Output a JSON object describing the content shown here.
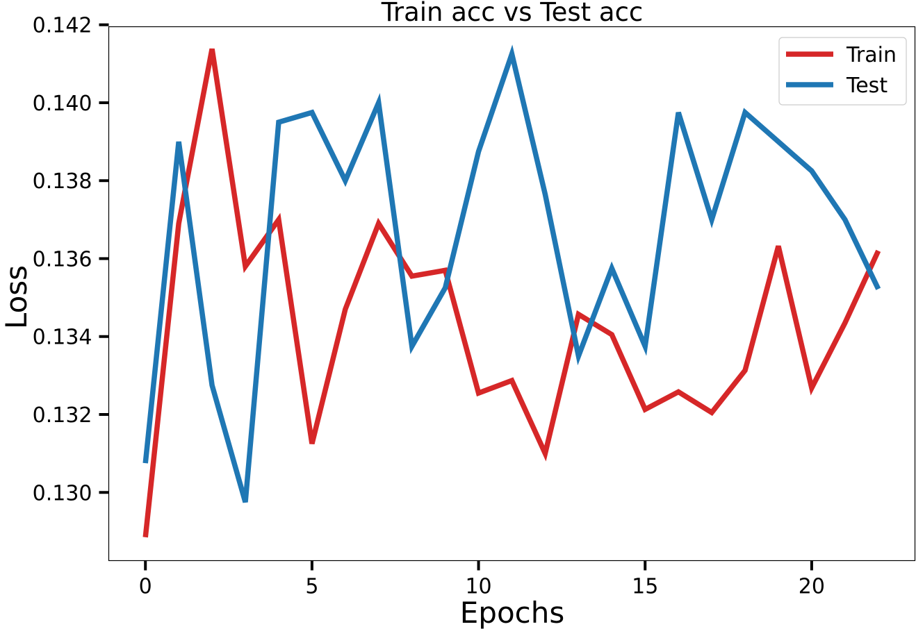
{
  "chart_data": {
    "type": "line",
    "title": "Train acc vs Test acc",
    "xlabel": "Epochs",
    "ylabel": "Loss",
    "xlim": [
      -1.1,
      23.1
    ],
    "ylim": [
      0.12825,
      0.14195
    ],
    "xticks": [
      0,
      5,
      10,
      15,
      20
    ],
    "xtick_labels": [
      "0",
      "5",
      "10",
      "15",
      "20"
    ],
    "yticks": [
      0.13,
      0.132,
      0.134,
      0.136,
      0.138,
      0.14,
      0.142
    ],
    "ytick_labels": [
      "0.130",
      "0.132",
      "0.134",
      "0.136",
      "0.138",
      "0.140",
      "0.142"
    ],
    "legend_position": "top-right",
    "grid": false,
    "x": [
      0,
      1,
      2,
      3,
      4,
      5,
      6,
      7,
      8,
      9,
      10,
      11,
      12,
      13,
      14,
      15,
      16,
      17,
      18,
      19,
      20,
      21,
      22
    ],
    "series": [
      {
        "name": "Train",
        "color": "#d62728",
        "values": [
          0.12885,
          0.1369,
          0.14138,
          0.1358,
          0.137,
          0.13125,
          0.1347,
          0.1369,
          0.13555,
          0.1357,
          0.13255,
          0.13287,
          0.131,
          0.13457,
          0.13405,
          0.13213,
          0.13258,
          0.13205,
          0.13313,
          0.13632,
          0.13268,
          0.13435,
          0.1362
        ]
      },
      {
        "name": "Test",
        "color": "#1f77b4",
        "values": [
          0.13075,
          0.139,
          0.13275,
          0.12975,
          0.1395,
          0.13975,
          0.138,
          0.14,
          0.13375,
          0.13525,
          0.13875,
          0.14125,
          0.13765,
          0.1335,
          0.13575,
          0.13375,
          0.13975,
          0.137,
          0.13975,
          0.139,
          0.13825,
          0.137,
          0.13522
        ]
      }
    ]
  }
}
